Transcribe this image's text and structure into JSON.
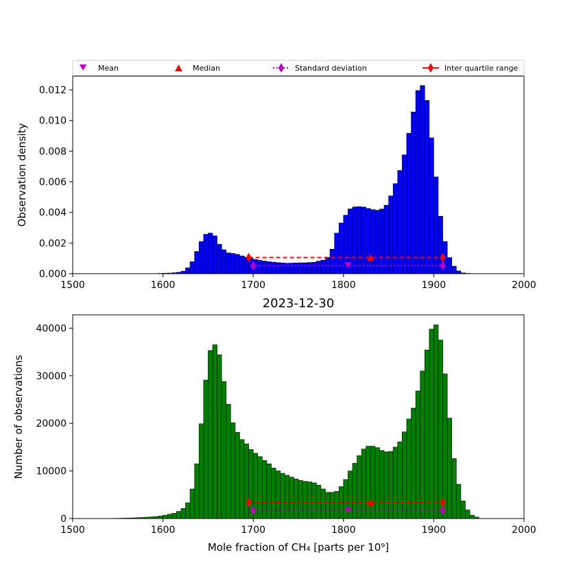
{
  "figure_title": "2023-12-30",
  "legend": {
    "placement": "above-top-plot",
    "entries": [
      {
        "label": "Mean",
        "marker": "triangle-down",
        "color": "#bf00bf"
      },
      {
        "label": "Median",
        "marker": "triangle-up",
        "color": "#ff0000"
      },
      {
        "label": "Standard deviation",
        "marker": "diamond-dotted-line",
        "color": "#bf00bf"
      },
      {
        "label": "Inter quartile range",
        "marker": "diamond-dashed-line",
        "color": "#ff0000"
      }
    ]
  },
  "chart_data": [
    {
      "type": "bar",
      "title": "",
      "xlabel": "",
      "ylabel": "Observation density",
      "xlim": [
        1500,
        2000
      ],
      "ylim": [
        0,
        0.0129
      ],
      "xticks": [
        1500,
        1600,
        1700,
        1800,
        1900,
        2000
      ],
      "xtick_labels": [
        "1500",
        "1600",
        "1700",
        "1800",
        "1900",
        "2000"
      ],
      "yticks": [
        0,
        0.002,
        0.004,
        0.006,
        0.008,
        0.01,
        0.012
      ],
      "ytick_labels": [
        "0.000",
        "0.002",
        "0.004",
        "0.006",
        "0.008",
        "0.010",
        "0.012"
      ],
      "bar_color": "#0000ff",
      "bin_start": 1540,
      "bin_width": 5,
      "values": [
        0,
        0,
        0,
        0,
        0,
        0,
        0,
        0,
        0,
        0,
        1e-05,
        2e-05,
        3e-05,
        4e-05,
        6e-05,
        9e-05,
        0.00016,
        0.00038,
        0.00078,
        0.00145,
        0.0021,
        0.00257,
        0.00265,
        0.00247,
        0.00192,
        0.00156,
        0.00136,
        0.00132,
        0.00126,
        0.00116,
        0.00108,
        0.001,
        0.00093,
        0.00087,
        0.00082,
        0.00078,
        0.00075,
        0.00072,
        0.0007,
        0.00068,
        0.00069,
        0.0007,
        0.00071,
        0.00071,
        0.00073,
        0.00075,
        0.00082,
        0.00088,
        0.00107,
        0.0016,
        0.00265,
        0.00331,
        0.00382,
        0.00423,
        0.00436,
        0.00438,
        0.00435,
        0.00426,
        0.00418,
        0.00414,
        0.00422,
        0.00447,
        0.00508,
        0.00588,
        0.00674,
        0.00776,
        0.00917,
        0.01056,
        0.01196,
        0.01229,
        0.01131,
        0.00887,
        0.00632,
        0.00375,
        0.0021,
        0.00105,
        0.00049,
        0.00018,
        5e-05,
        2e-05
      ],
      "stats": {
        "mean": 1805,
        "median": 1830,
        "std_range": [
          1700,
          1910
        ],
        "iqr_range": [
          1695,
          1910
        ],
        "std_y": 0.00052,
        "iqr_y": 0.00105
      }
    },
    {
      "type": "bar",
      "title": "2023-12-30",
      "xlabel": "Mole fraction of CH₄ [parts per 10⁹]",
      "ylabel": "Number of observations",
      "xlim": [
        1500,
        2000
      ],
      "ylim": [
        0,
        42800
      ],
      "xticks": [
        1500,
        1600,
        1700,
        1800,
        1900,
        2000
      ],
      "xtick_labels": [
        "1500",
        "1600",
        "1700",
        "1800",
        "1900",
        "2000"
      ],
      "yticks": [
        0,
        10000,
        20000,
        30000,
        40000
      ],
      "ytick_labels": [
        "0",
        "10000",
        "20000",
        "30000",
        "40000"
      ],
      "bar_color": "#008000",
      "bin_start": 1540,
      "bin_width": 5,
      "values": [
        0,
        40,
        60,
        80,
        100,
        140,
        180,
        220,
        280,
        340,
        420,
        540,
        700,
        900,
        1100,
        1500,
        2100,
        3300,
        6200,
        11500,
        19900,
        29100,
        35300,
        36500,
        34400,
        28800,
        24000,
        20100,
        18100,
        16600,
        15700,
        14500,
        13700,
        13000,
        12200,
        11500,
        10600,
        10000,
        9500,
        9100,
        8700,
        8300,
        8000,
        7800,
        7700,
        7500,
        7000,
        6200,
        5500,
        5500,
        5700,
        6700,
        8200,
        10000,
        11600,
        13200,
        14600,
        15200,
        15200,
        14900,
        14300,
        14000,
        14100,
        15000,
        16100,
        18200,
        20900,
        23200,
        26800,
        31000,
        35400,
        39800,
        40700,
        37500,
        30400,
        21100,
        12600,
        7200,
        3700,
        1800,
        700,
        300
      ]
    }
  ]
}
